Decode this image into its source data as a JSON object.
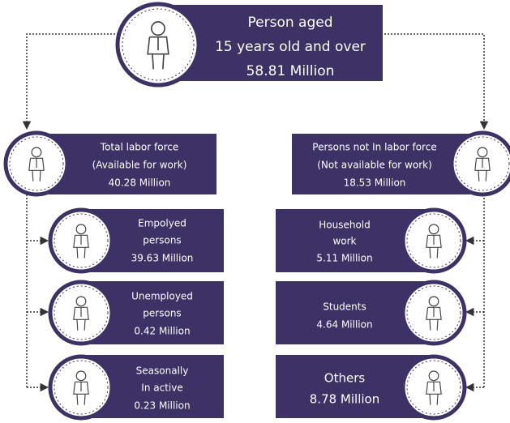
{
  "top": {
    "lines": [
      "Person aged",
      "15 years old and over",
      "58.81 Million"
    ]
  },
  "labor_force": {
    "lines": [
      "Total labor force",
      "(Available for work)",
      "40.28 Million"
    ],
    "groups": [
      {
        "lines": [
          "Empolyed",
          "persons",
          "39.63 Million"
        ]
      },
      {
        "lines": [
          "Unemployed",
          "persons",
          "0.42 Million"
        ]
      },
      {
        "lines": [
          "Seasonally",
          "In active",
          "0.23 Million"
        ]
      }
    ]
  },
  "not_in_labor_force": {
    "lines": [
      "Persons not In labor force",
      "(Not available for work)",
      "18.53 Million"
    ],
    "groups": [
      {
        "lines": [
          "Household",
          "work",
          "5.11 Million"
        ]
      },
      {
        "lines": [
          "Students",
          "4.64 Million"
        ]
      },
      {
        "lines": [
          "Others",
          "8.78 Million"
        ]
      }
    ]
  }
}
